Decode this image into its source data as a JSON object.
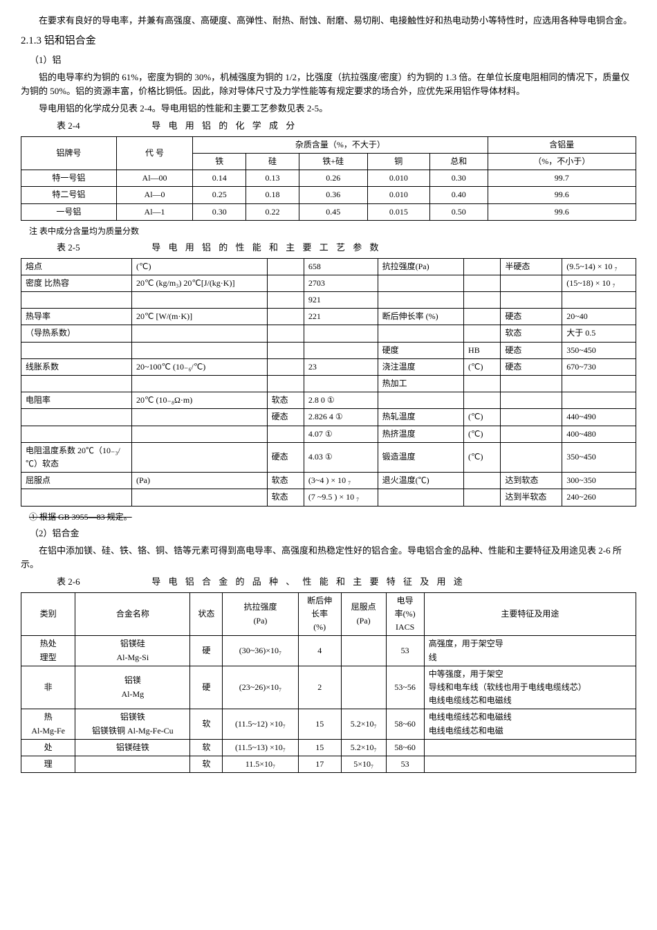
{
  "intro": {
    "p1": "在要求有良好的导电率，并兼有高强度、高硬度、高弹性、耐热、耐蚀、耐磨、易切削、电接触性好和热电动势小等特性时，应选用各种导电铜合金。",
    "h": "2.1.3 铝和铝合金",
    "sub1": "（1）铝",
    "p2": "铝的电导率约为铜的 61%，密度为铜的 30%，机械强度为铜的 1/2，比强度（抗拉强度/密度）约为铜的 1.3 倍。在单位长度电阻相同的情况下，质量仅为铜的 50%。铝的资源丰富，价格比铜低。因此，除对导体尺寸及力学性能等有规定要求的场合外，应优先采用铝作导体材料。",
    "p3": "导电用铝的化学成分见表 2-4。导电用铝的性能和主要工艺参数见表 2-5。"
  },
  "t24": {
    "no": "表 2-4",
    "title": "导 电 用 铝 的 化 学 成 分",
    "header": {
      "c1": "铝牌号",
      "c2": "代 号",
      "cmid": "杂质含量（%，不大于）",
      "c3": "铁",
      "c4": "硅",
      "c5": "铁+硅",
      "c6": "铜",
      "c7": "总和",
      "c8": "含铝量",
      "c8b": "（%，不小于）"
    },
    "rows": [
      [
        "特一号铝",
        "Al—00",
        "0.14",
        "0.13",
        "0.26",
        "0.010",
        "0.30",
        "99.7"
      ],
      [
        "特二号铝",
        "Al—0",
        "0.25",
        "0.18",
        "0.36",
        "0.010",
        "0.40",
        "99.6"
      ],
      [
        "一号铝",
        "Al—1",
        "0.30",
        "0.22",
        "0.45",
        "0.015",
        "0.50",
        "99.6"
      ]
    ],
    "note": "注 表中成分含量均为质量分数"
  },
  "t25": {
    "no": "表 2-5",
    "title": "导 电 用 铝 的 性 能 和 主 要 工 艺 参 数",
    "rows": [
      {
        "l1": "熔点",
        "l2": "(℃)",
        "l3": "",
        "v": "658",
        "r1": "抗拉强度(Pa)",
        "r2": "",
        "r3": "半硬态",
        "r4": "(9.5~14) × 10 ₇"
      },
      {
        "l1": "密度 比热容",
        "l2": "20℃ (kg/m₃) 20℃[J/(kg·K)]",
        "l3": "",
        "v": "2703",
        "r1": "",
        "r2": "",
        "r3": "",
        "r4": "(15~18)   × 10 ₇"
      },
      {
        "l1": "",
        "l2": "",
        "l3": "",
        "v": "921",
        "r1": "",
        "r2": "",
        "r3": "",
        "r4": ""
      },
      {
        "l1": "热导率",
        "l2": "20℃ [W/(m·K)]",
        "l3": "",
        "v": "221",
        "r1": "断后伸长率 (%)",
        "r2": "",
        "r3": "硬态",
        "r4": "20~40"
      },
      {
        "l1": "（导热系数）",
        "l2": "",
        "l3": "",
        "v": "",
        "r1": "",
        "r2": "",
        "r3": "软态",
        "r4": "大于 0.5"
      },
      {
        "l1": "",
        "l2": "",
        "l3": "",
        "v": "",
        "r1": "硬度",
        "r2": "HB",
        "r3": "硬态",
        "r4": "350~450"
      },
      {
        "l1": "线胀系数",
        "l2": "20~100℃ (10₋₆/℃)",
        "l3": "",
        "v": "23",
        "r1": "浇注温度",
        "r2": "(℃)",
        "r3": "硬态",
        "r4": "670~730"
      },
      {
        "l1": "",
        "l2": "",
        "l3": "",
        "v": "",
        "r1": "热加工",
        "r2": "",
        "r3": "",
        "r4": ""
      },
      {
        "l1": "电阻率",
        "l2": "20℃ (10₋₈Ω·m)",
        "l3": "软态",
        "v": "2.8 0 ①",
        "r1": "",
        "r2": "",
        "r3": "",
        "r4": ""
      },
      {
        "l1": "",
        "l2": "",
        "l3": "硬态",
        "v": "2.826 4 ①",
        "r1": "热轧温度",
        "r2": "(℃)",
        "r3": "",
        "r4": "440~490"
      },
      {
        "l1": "",
        "l2": "",
        "l3": "",
        "v": "4.07 ①",
        "r1": "热挤温度",
        "r2": "(℃)",
        "r3": "",
        "r4": "400~480"
      },
      {
        "l1": "电阻温度系数 20℃（10₋₃/℃）软态",
        "l2": "",
        "l3": "硬态",
        "v": "4.03 ①",
        "r1": "锻造温度",
        "r2": "(℃)",
        "r3": "",
        "r4": "350~450"
      },
      {
        "l1": "屈服点",
        "l2": "(Pa)",
        "l3": "软态",
        "v": "(3~4 ) × 10 ₇",
        "r1": "退火温度(℃)",
        "r2": "",
        "r3": "达到软态",
        "r4": "300~350"
      },
      {
        "l1": "",
        "l2": "",
        "l3": "软态",
        "v": "(7 ~9.5 ) × 10 ₇",
        "r1": "",
        "r2": "",
        "r3": "达到半软态",
        "r4": "240~260"
      }
    ],
    "note": "① 根据 GB 3955—83 规定。"
  },
  "mid": {
    "sub2": "（2）铝合金",
    "p4": "在铝中添加镁、硅、铁、铬、铜、锆等元素可得到高电导率、高强度和热稳定性好的铝合金。导电铝合金的品种、性能和主要特征及用途见表 2-6 所示。"
  },
  "t26": {
    "no": "表 2-6",
    "title": "导 电 铝 合 金 的 品 种 、 性 能 和 主 要 特 征 及 用 途",
    "header": {
      "c1": "类别",
      "c2": "合金名称",
      "c3": "状态",
      "c4": "抗拉强度\n(Pa)",
      "c5": "断后伸\n长率\n(%)",
      "c6": "屈服点\n(Pa)",
      "c7": "电导\n率(%)\nIACS",
      "c8": "主要特征及用途"
    },
    "rows": [
      [
        "热处\n理型",
        "铝镁硅\nAl-Mg-Si",
        "硬",
        "(30~36)×10₇",
        "4",
        "",
        "53",
        "高强度，用于架空导\n线"
      ],
      [
        "非",
        "铝镁\nAl-Mg",
        "硬",
        "(23~26)×10₇",
        "2",
        "",
        "53~56",
        "中等强度，用于架空\n导线和电车线（软线也用于电线电缆线芯）\n电线电缆线芯和电磁线"
      ],
      [
        "热\nAl-Mg-Fe",
        "铝镁铁\n铝镁铁铜 Al-Mg-Fe-Cu",
        "软",
        "(11.5~12) ×10₇",
        "15",
        "5.2×10₇",
        "58~60",
        "电线电缆线芯和电磁线\n电线电缆线芯和电磁"
      ],
      [
        "处",
        "铝镁硅铁",
        "软",
        "(11.5~13) ×10₇",
        "15",
        "5.2×10₇",
        "58~60",
        ""
      ],
      [
        "理",
        "",
        "软",
        "11.5×10₇",
        "17",
        "5×10₇",
        "53",
        ""
      ]
    ]
  }
}
